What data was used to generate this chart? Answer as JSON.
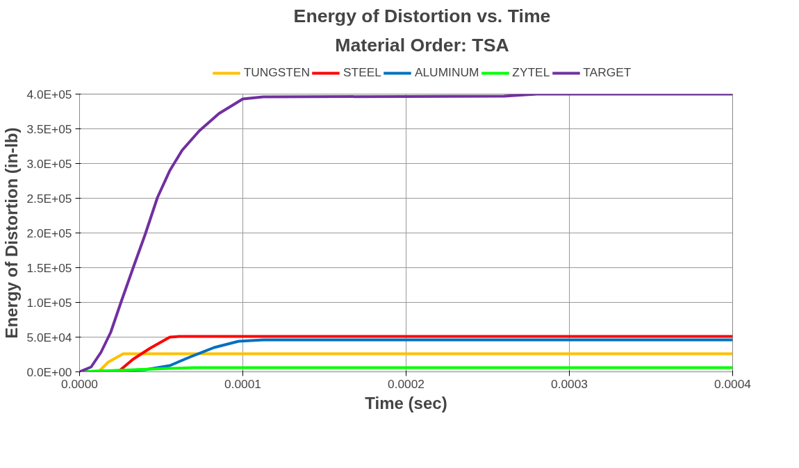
{
  "chart_data": {
    "type": "line",
    "title": "Energy of Distortion vs. Time",
    "subtitle": "Material Order: TSA",
    "xlabel": "Time (sec)",
    "ylabel": "Energy of Distortion (in-lb)",
    "xlim": [
      0,
      0.0004
    ],
    "xticks": [
      {
        "value": 0,
        "label": "0.0000"
      },
      {
        "value": 0.0001,
        "label": "0.0001"
      },
      {
        "value": 0.0002,
        "label": "0.0002"
      },
      {
        "value": 0.0003,
        "label": "0.0003"
      },
      {
        "value": 0.0004,
        "label": "0.0004"
      }
    ],
    "ylim": [
      0,
      400000
    ],
    "yticks": [
      {
        "value": 0,
        "label": "0.0E+00"
      },
      {
        "value": 50000,
        "label": "5.0E+04"
      },
      {
        "value": 100000,
        "label": "1.0E+05"
      },
      {
        "value": 150000,
        "label": "1.5E+05"
      },
      {
        "value": 200000,
        "label": "2.0E+05"
      },
      {
        "value": 250000,
        "label": "2.5E+05"
      },
      {
        "value": 300000,
        "label": "3.0E+05"
      },
      {
        "value": 350000,
        "label": "3.5E+05"
      },
      {
        "value": 400000,
        "label": "4.0E+05"
      }
    ],
    "grid": true,
    "legend": "top",
    "marker": "none",
    "line_style": "solid",
    "series": [
      {
        "name": "TUNGSTEN",
        "color": "#ffc000",
        "x": [
          0,
          1.16e-05,
          1.76e-05,
          2.67e-05,
          3e-05,
          0.0004
        ],
        "values": [
          0,
          0,
          14000,
          26000,
          26000,
          26000
        ]
      },
      {
        "name": "STEEL",
        "color": "#ff0000",
        "x": [
          0,
          2.36e-05,
          3.27e-05,
          4.32e-05,
          5.53e-05,
          6.13e-05,
          7e-05,
          0.0004
        ],
        "values": [
          0,
          0,
          18000,
          34000,
          50000,
          51000,
          51000,
          51000
        ]
      },
      {
        "name": "ALUMINUM",
        "color": "#0070c0",
        "x": [
          0,
          4.02e-05,
          5.53e-05,
          6.73e-05,
          8.24e-05,
          9.74e-05,
          0.0001125,
          0.0004
        ],
        "values": [
          0,
          3000,
          9000,
          21000,
          35000,
          44000,
          46000,
          46000
        ]
      },
      {
        "name": "ZYTEL",
        "color": "#00ff00",
        "x": [
          0,
          5.53e-05,
          7.03e-05,
          0.0004
        ],
        "values": [
          0,
          5000,
          6000,
          6000
        ]
      },
      {
        "name": "TARGET",
        "color": "#7030a0",
        "x": [
          0,
          7.1e-06,
          1.31e-05,
          1.91e-05,
          2.52e-05,
          3.27e-05,
          4.02e-05,
          4.77e-05,
          5.53e-05,
          6.28e-05,
          7.33e-05,
          8.54e-05,
          0.0001,
          0.0001125,
          0.00026,
          0.00028,
          0.0004
        ],
        "values": [
          0,
          7000,
          28000,
          57000,
          99000,
          149000,
          198000,
          251000,
          290000,
          319000,
          347000,
          372000,
          393000,
          396000,
          397000,
          400000,
          400000
        ]
      }
    ]
  }
}
